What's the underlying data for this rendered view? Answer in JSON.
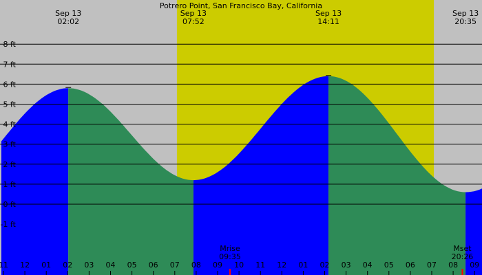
{
  "chart_data": {
    "type": "area",
    "title": "Potrero Point, San Francisco Bay, California",
    "colors": {
      "background": "#c0c0c0",
      "daylight": "#cccc00",
      "rising": "#0000ff",
      "falling": "#2e8b57",
      "gridline": "#000000",
      "moon_marker": "#ff0000"
    },
    "ylim": [
      -2.1,
      9.0
    ],
    "y_ticks": [
      {
        "value": 8,
        "label": "8 ft"
      },
      {
        "value": 7,
        "label": "7 ft"
      },
      {
        "value": 6,
        "label": "6 ft"
      },
      {
        "value": 5,
        "label": "5 ft"
      },
      {
        "value": 4,
        "label": "4 ft"
      },
      {
        "value": 3,
        "label": "3 ft"
      },
      {
        "value": 2,
        "label": "2 ft"
      },
      {
        "value": 1,
        "label": "1 ft"
      },
      {
        "value": 0,
        "label": "0 ft"
      },
      {
        "value": -1,
        "label": "-1 ft"
      }
    ],
    "xlim": [
      -1.1,
      21.5
    ],
    "x_ticks": [
      {
        "hour": -1,
        "label": "11"
      },
      {
        "hour": 0,
        "label": "12"
      },
      {
        "hour": 1,
        "label": "01"
      },
      {
        "hour": 2,
        "label": "02"
      },
      {
        "hour": 3,
        "label": "03"
      },
      {
        "hour": 4,
        "label": "04"
      },
      {
        "hour": 5,
        "label": "05"
      },
      {
        "hour": 6,
        "label": "06"
      },
      {
        "hour": 7,
        "label": "07"
      },
      {
        "hour": 8,
        "label": "08"
      },
      {
        "hour": 9,
        "label": "09"
      },
      {
        "hour": 10,
        "label": "10"
      },
      {
        "hour": 11,
        "label": "11"
      },
      {
        "hour": 12,
        "label": "12"
      },
      {
        "hour": 13,
        "label": "01"
      },
      {
        "hour": 14,
        "label": "02"
      },
      {
        "hour": 15,
        "label": "03"
      },
      {
        "hour": 16,
        "label": "04"
      },
      {
        "hour": 17,
        "label": "05"
      },
      {
        "hour": 18,
        "label": "06"
      },
      {
        "hour": 19,
        "label": "07"
      },
      {
        "hour": 20,
        "label": "08"
      },
      {
        "hour": 21,
        "label": "09"
      }
    ],
    "daylight": [
      7.1,
      19.1
    ],
    "extremes": [
      {
        "date": "Sep 13",
        "time": "02:02",
        "hour": 2.03,
        "height": 5.8,
        "kind": "high"
      },
      {
        "date": "Sep 13",
        "time": "07:52",
        "hour": 7.87,
        "height": 1.2,
        "kind": "low"
      },
      {
        "date": "Sep 13",
        "time": "14:11",
        "hour": 14.18,
        "height": 6.4,
        "kind": "high"
      },
      {
        "date": "Sep 13",
        "time": "20:35",
        "hour": 20.58,
        "height": 0.6,
        "kind": "low"
      }
    ],
    "start_height": 3.2,
    "end_height": 1.0,
    "moon_events": [
      {
        "label": "Mrise",
        "time": "09:35",
        "hour": 9.58
      },
      {
        "label": "Mset",
        "time": "20:26",
        "hour": 20.43
      }
    ]
  }
}
